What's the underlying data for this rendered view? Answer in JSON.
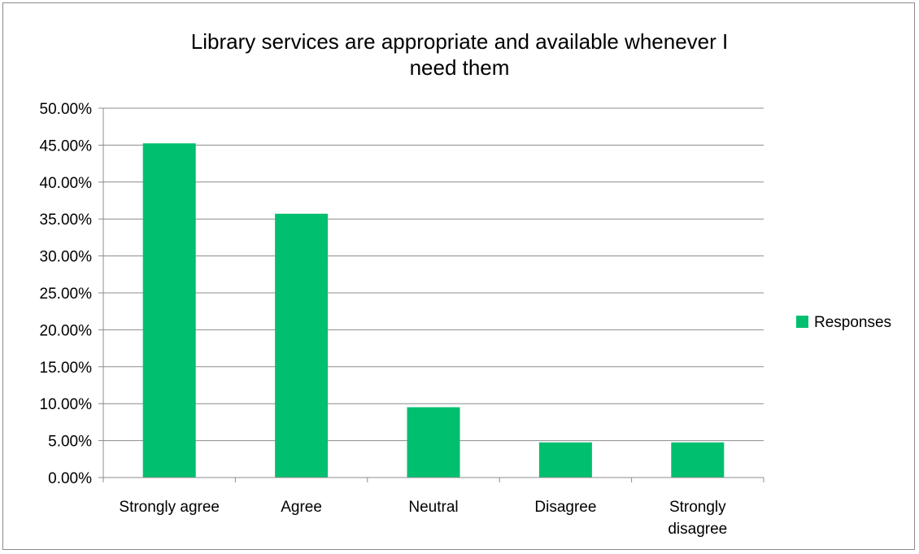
{
  "chart_data": {
    "type": "bar",
    "title_lines": [
      "Library services are appropriate and available whenever I",
      "need them"
    ],
    "categories": [
      [
        "Strongly agree"
      ],
      [
        "Agree"
      ],
      [
        "Neutral"
      ],
      [
        "Disagree"
      ],
      [
        "Strongly",
        "disagree"
      ]
    ],
    "series": [
      {
        "name": "Responses",
        "color": "#00bf6f",
        "values": [
          45.24,
          35.71,
          9.52,
          4.76,
          4.76
        ]
      }
    ],
    "ylim": [
      0,
      50
    ],
    "ytick_labels": [
      "0.00%",
      "5.00%",
      "10.00%",
      "15.00%",
      "20.00%",
      "25.00%",
      "30.00%",
      "35.00%",
      "40.00%",
      "45.00%",
      "50.00%"
    ],
    "ytick_values": [
      0,
      5,
      10,
      15,
      20,
      25,
      30,
      35,
      40,
      45,
      50
    ],
    "grid": true,
    "legend_position": "right",
    "xlabel": "",
    "ylabel": ""
  }
}
